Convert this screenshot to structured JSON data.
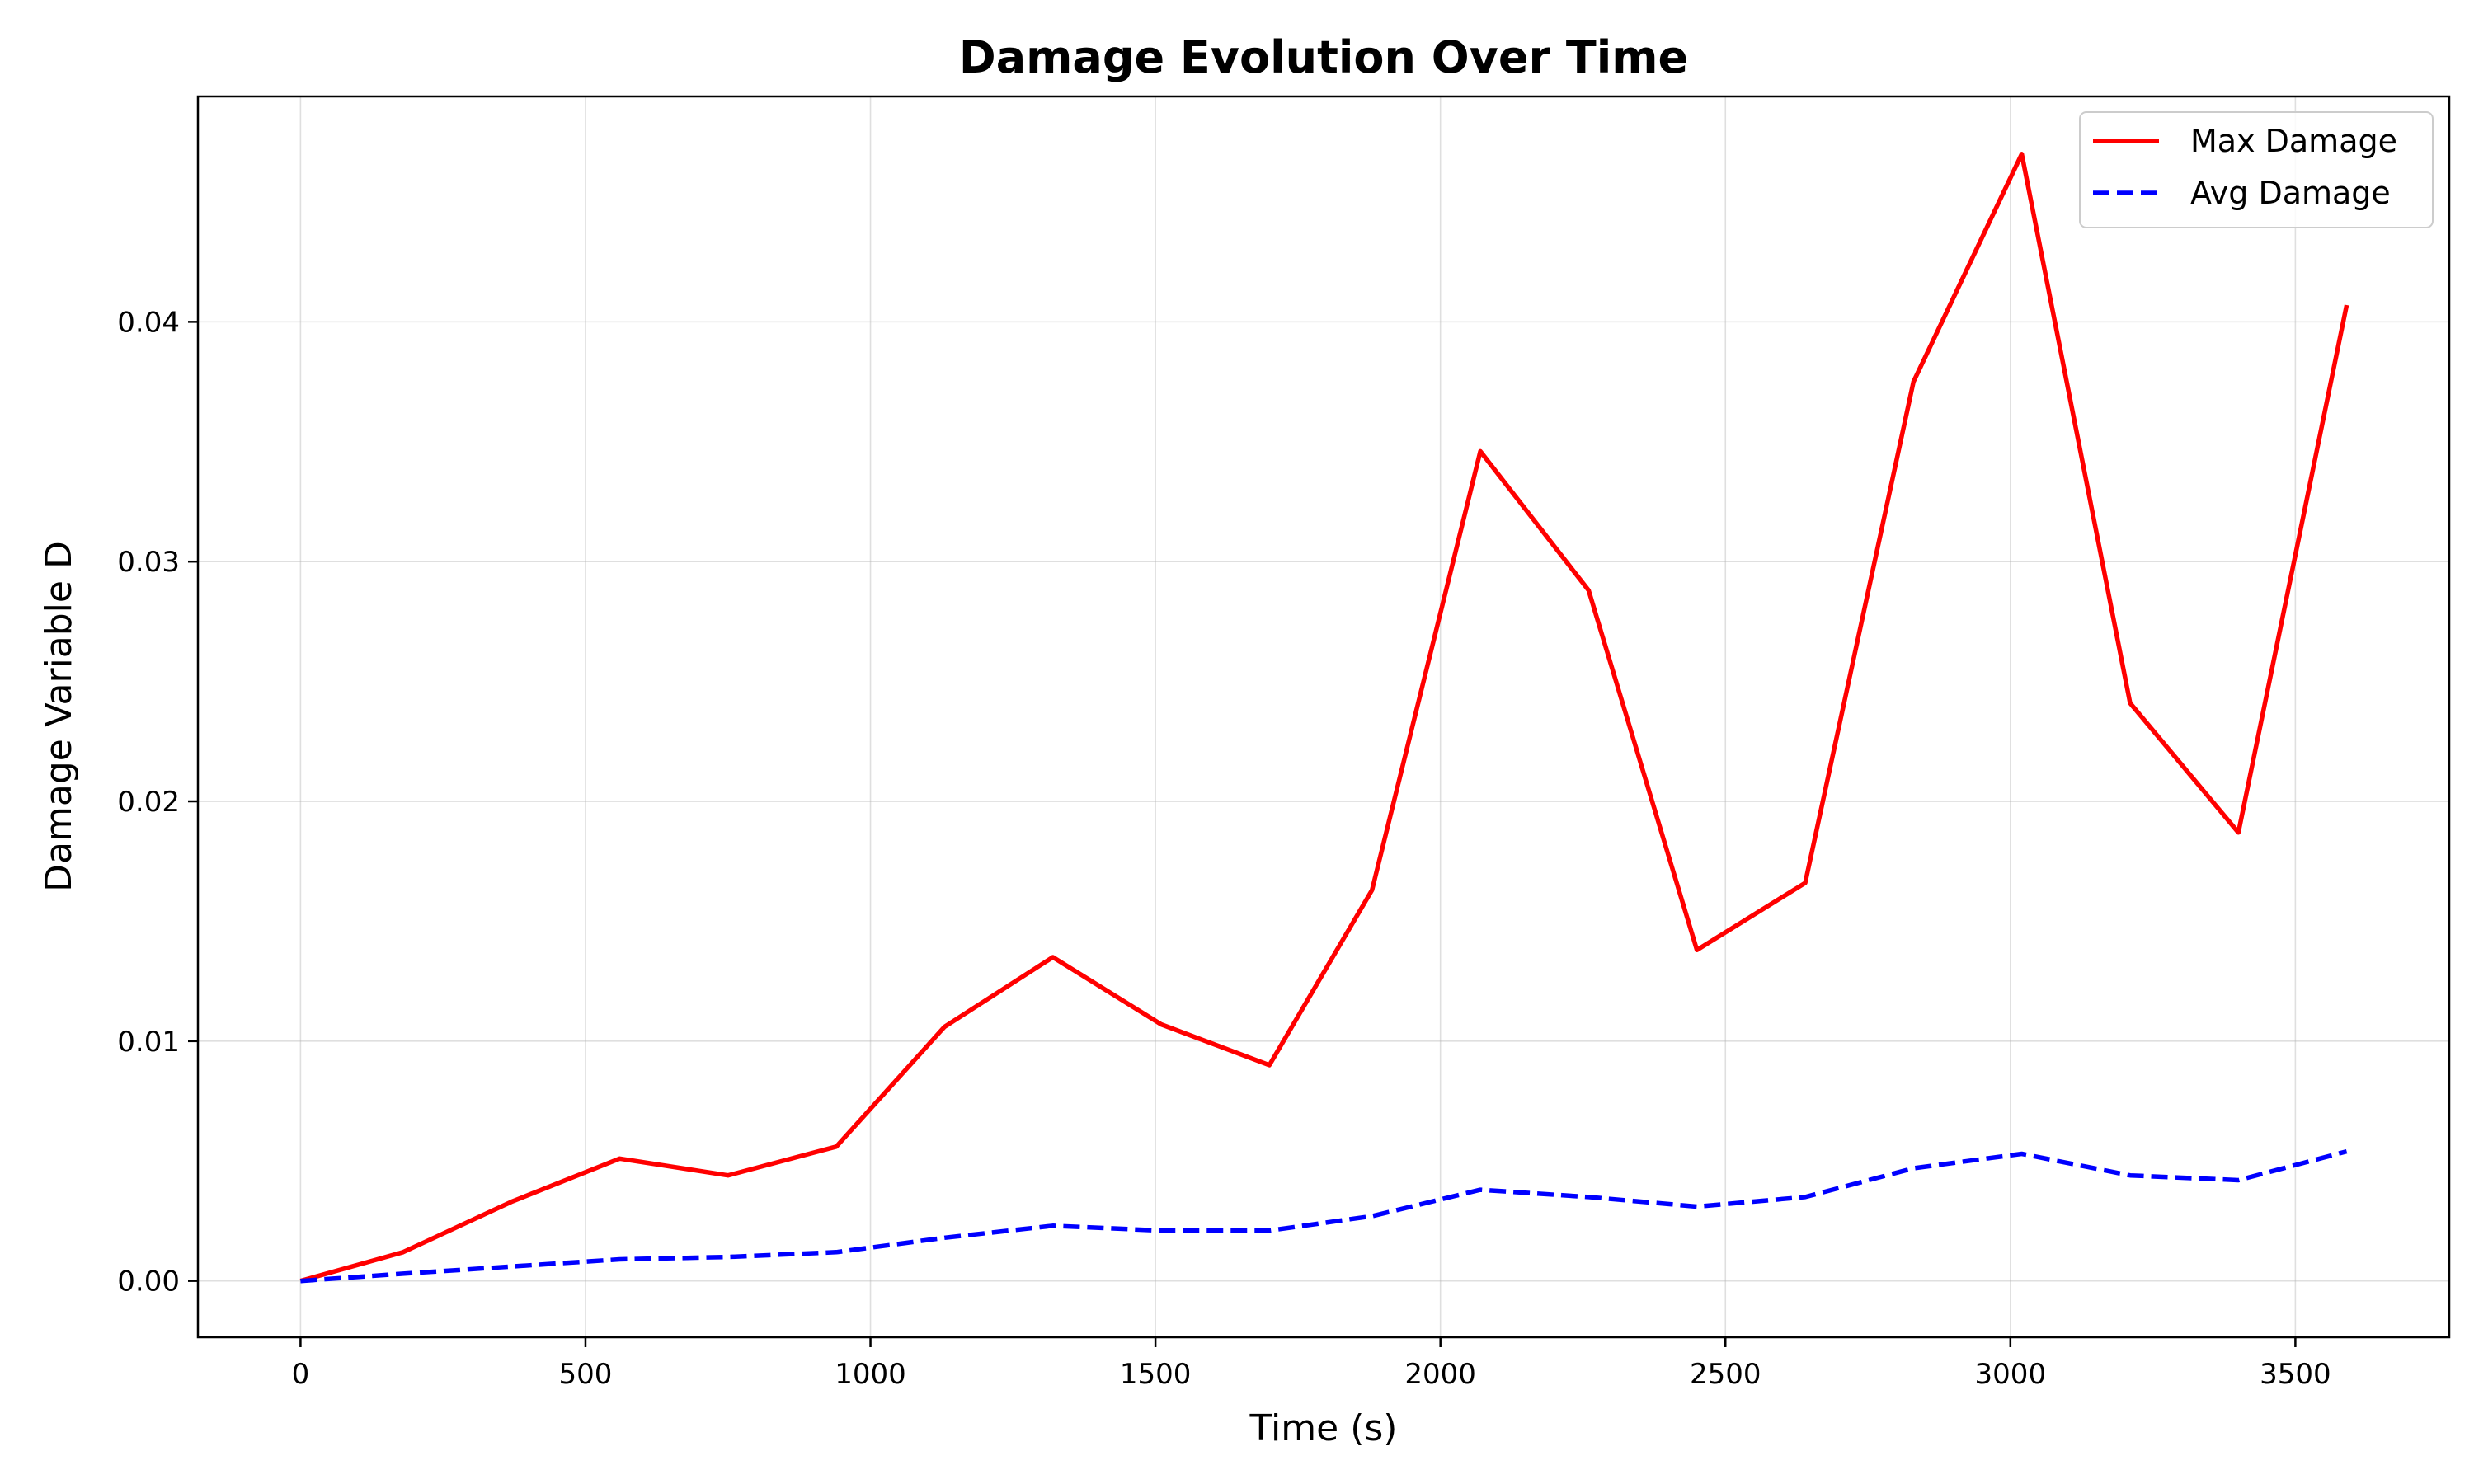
{
  "chart_data": {
    "type": "line",
    "title": "Damage Evolution Over Time",
    "xlabel": "Time (s)",
    "ylabel": "Damage Variable D",
    "xlim": [
      -180,
      3770
    ],
    "ylim": [
      -0.00235,
      0.0494
    ],
    "xticks": [
      0,
      500,
      1000,
      1500,
      2000,
      2500,
      3000,
      3500
    ],
    "xtick_labels": [
      "0",
      "500",
      "1000",
      "1500",
      "2000",
      "2500",
      "3000",
      "3500"
    ],
    "yticks": [
      0.0,
      0.01,
      0.02,
      0.03,
      0.04
    ],
    "ytick_labels": [
      "0.00",
      "0.01",
      "0.02",
      "0.03",
      "0.04"
    ],
    "grid": true,
    "legend_position": "top-right",
    "x": [
      0,
      180,
      370,
      560,
      750,
      940,
      1130,
      1320,
      1510,
      1700,
      1880,
      2070,
      2260,
      2450,
      2640,
      2830,
      3020,
      3210,
      3400,
      3590
    ],
    "series": [
      {
        "name": "Max Damage",
        "color": "#ff0000",
        "style": "solid",
        "values": [
          0.0,
          0.0012,
          0.0033,
          0.0051,
          0.0044,
          0.0056,
          0.0106,
          0.0135,
          0.0107,
          0.009,
          0.0163,
          0.0346,
          0.0288,
          0.0138,
          0.0166,
          0.0375,
          0.047,
          0.0241,
          0.0187,
          0.0407
        ]
      },
      {
        "name": "Avg Damage",
        "color": "#0000ff",
        "style": "dashed",
        "values": [
          0.0,
          0.0003,
          0.0006,
          0.0009,
          0.001,
          0.0012,
          0.0018,
          0.0023,
          0.0021,
          0.0021,
          0.0027,
          0.0038,
          0.0035,
          0.0031,
          0.0035,
          0.0047,
          0.0053,
          0.0044,
          0.0042,
          0.0054
        ]
      }
    ]
  }
}
